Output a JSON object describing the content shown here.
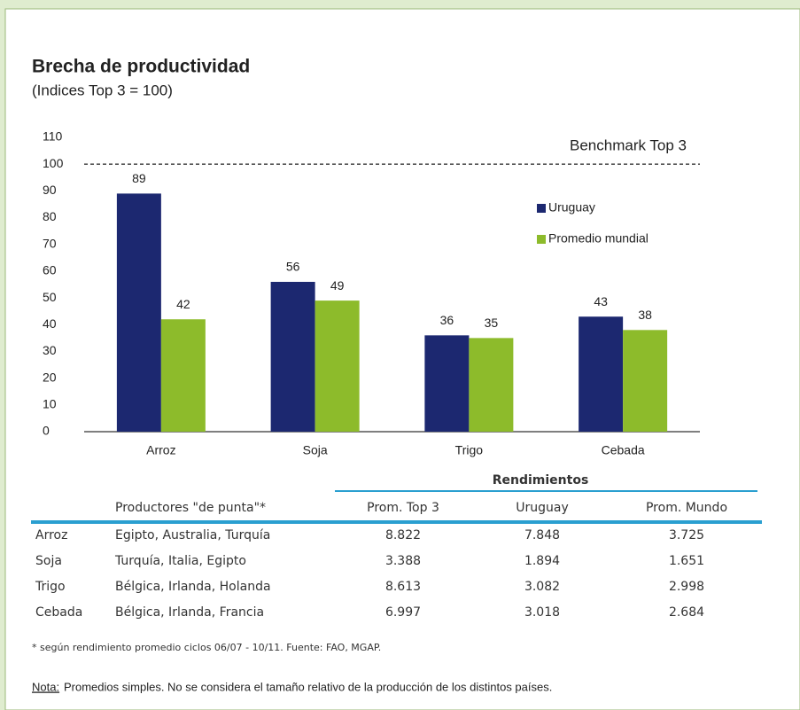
{
  "chart_data": {
    "type": "bar",
    "title": "Brecha de productividad",
    "subtitle": "(Indices Top 3 = 100)",
    "categories": [
      "Arroz",
      "Soja",
      "Trigo",
      "Cebada"
    ],
    "series": [
      {
        "name": "Uruguay",
        "color": "#1c2870",
        "values": [
          89,
          56,
          36,
          43
        ]
      },
      {
        "name": "Promedio mundial",
        "color": "#8dbb2b",
        "values": [
          42,
          49,
          35,
          38
        ]
      }
    ],
    "ylim": [
      0,
      110
    ],
    "yticks": [
      0,
      10,
      20,
      30,
      40,
      50,
      60,
      70,
      80,
      90,
      100,
      110
    ],
    "benchmark": {
      "label": "Benchmark Top 3",
      "value": 100
    },
    "grid": false
  },
  "table": {
    "group_header": "Rendimientos",
    "columns": [
      "Productores \"de punta\"*",
      "Prom. Top 3",
      "Uruguay",
      "Prom. Mundo"
    ],
    "rows": [
      [
        "Arroz",
        "Egipto, Australia, Turquía",
        "8.822",
        "7.848",
        "3.725"
      ],
      [
        "Soja",
        "Turquía, Italia, Egipto",
        "3.388",
        "1.894",
        "1.651"
      ],
      [
        "Trigo",
        "Bélgica, Irlanda, Holanda",
        "8.613",
        "3.082",
        "2.998"
      ],
      [
        "Cebada",
        "Bélgica, Irlanda, Francia",
        "6.997",
        "3.018",
        "2.684"
      ]
    ]
  },
  "footnote": "* según rendimiento promedio ciclos 06/07 - 10/11. Fuente: FAO, MGAP.",
  "note_label": "Nota:",
  "note_text": " Promedios simples. No se considera el tamaño relativo de la producción de los distintos países."
}
